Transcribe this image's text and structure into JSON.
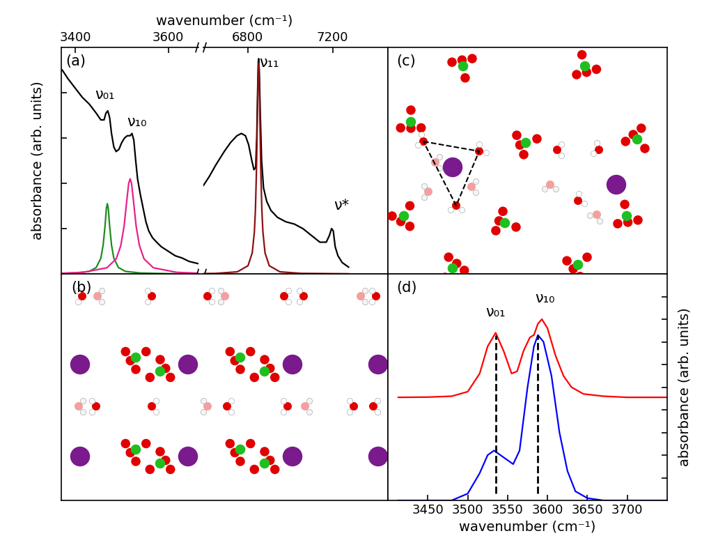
{
  "chart_data": [
    {
      "type": "line",
      "panel": "(a)",
      "xlabel": "wavenumber (cm⁻¹)",
      "ylabel": "absorbance (arb. units)",
      "xlim": [
        3370,
        3665
      ],
      "xticks": [
        3400,
        3600
      ],
      "ylim": [
        0,
        1
      ],
      "yticks": [
        0.2,
        0.4,
        0.6,
        0.8
      ],
      "tick_labels": "x",
      "series": [
        {
          "color": "#000000",
          "x": [
            3372,
            3385,
            3400,
            3415,
            3430,
            3445,
            3455,
            3462,
            3466,
            3470,
            3474,
            3478,
            3483,
            3488,
            3494,
            3500,
            3506,
            3512,
            3518,
            3522,
            3526,
            3530,
            3534,
            3540,
            3546,
            3552,
            3558,
            3566,
            3575,
            3585,
            3600,
            3615,
            3630,
            3645,
            3665
          ],
          "values": [
            0.9,
            0.86,
            0.82,
            0.78,
            0.75,
            0.71,
            0.68,
            0.68,
            0.71,
            0.72,
            0.69,
            0.62,
            0.56,
            0.54,
            0.55,
            0.58,
            0.6,
            0.61,
            0.61,
            0.62,
            0.59,
            0.5,
            0.42,
            0.35,
            0.29,
            0.23,
            0.19,
            0.16,
            0.14,
            0.12,
            0.1,
            0.08,
            0.07,
            0.055,
            0.045
          ]
        },
        {
          "color": "#1e8c1e",
          "x": [
            3372,
            3400,
            3430,
            3445,
            3455,
            3460,
            3464,
            3467,
            3469,
            3471,
            3474,
            3478,
            3483,
            3493,
            3508,
            3540,
            3600,
            3665
          ],
          "values": [
            0.002,
            0.004,
            0.011,
            0.028,
            0.069,
            0.127,
            0.21,
            0.29,
            0.31,
            0.29,
            0.21,
            0.127,
            0.069,
            0.028,
            0.011,
            0.004,
            0.001,
            0.0
          ]
        },
        {
          "color": "#e8208c",
          "x": [
            3372,
            3418,
            3468,
            3488,
            3498,
            3505,
            3512,
            3515,
            3518,
            3521,
            3524,
            3531,
            3538,
            3548,
            3568,
            3618,
            3665
          ],
          "values": [
            0.003,
            0.007,
            0.027,
            0.066,
            0.125,
            0.21,
            0.346,
            0.4,
            0.42,
            0.4,
            0.346,
            0.21,
            0.125,
            0.066,
            0.027,
            0.007,
            0.003
          ]
        }
      ],
      "annotations": [
        {
          "text": "ν₀₁",
          "x": 3464,
          "y": 0.76
        },
        {
          "text": "ν₁₀",
          "x": 3533,
          "y": 0.64
        }
      ]
    },
    {
      "type": "line",
      "xlim": [
        6592,
        7460
      ],
      "xticks": [
        6800,
        7200
      ],
      "ylim": [
        0,
        1
      ],
      "yticks": [],
      "tick_labels": "x",
      "series": [
        {
          "color": "#000000",
          "x": [
            6592,
            6620,
            6650,
            6690,
            6720,
            6750,
            6771,
            6790,
            6805,
            6820,
            6830,
            6838,
            6843,
            6847,
            6850,
            6852,
            6855,
            6860,
            6866,
            6875,
            6890,
            6910,
            6940,
            6980,
            7020,
            7060,
            7100,
            7140,
            7170,
            7185,
            7195,
            7203,
            7212,
            7225,
            7245,
            7275
          ],
          "values": [
            0.39,
            0.43,
            0.48,
            0.54,
            0.58,
            0.61,
            0.62,
            0.61,
            0.57,
            0.5,
            0.46,
            0.47,
            0.6,
            0.8,
            0.93,
            0.95,
            0.9,
            0.7,
            0.5,
            0.38,
            0.32,
            0.28,
            0.25,
            0.23,
            0.22,
            0.2,
            0.17,
            0.14,
            0.14,
            0.17,
            0.2,
            0.19,
            0.12,
            0.08,
            0.05,
            0.03
          ]
        },
        {
          "color": "#8b1010",
          "x": [
            6592,
            6652,
            6752,
            6802,
            6822,
            6832,
            6837,
            6842,
            6846,
            6849,
            6852,
            6855,
            6858,
            6862,
            6867,
            6872,
            6882,
            6902,
            6952,
            7052,
            7275
          ],
          "values": [
            0.0014,
            0.0023,
            0.0092,
            0.036,
            0.093,
            0.186,
            0.286,
            0.465,
            0.684,
            0.853,
            0.93,
            0.853,
            0.684,
            0.465,
            0.286,
            0.186,
            0.093,
            0.036,
            0.0092,
            0.0023,
            0.0005
          ]
        }
      ],
      "annotations": [
        {
          "text": "ν₁₁",
          "x": 6900,
          "y": 0.9
        },
        {
          "text": "ν*",
          "x": 7240,
          "y": 0.27
        }
      ]
    },
    {
      "type": "line",
      "panel": "(d)",
      "xlabel": "wavenumber (cm⁻¹)",
      "ylabel": "absorbance (arb. units)",
      "xlim": [
        3400,
        3750
      ],
      "xticks": [
        3450,
        3500,
        3550,
        3600,
        3650,
        3700
      ],
      "ylim": [
        0,
        1
      ],
      "yticks": [
        0.1,
        0.2,
        0.3,
        0.4,
        0.5,
        0.6,
        0.7,
        0.8,
        0.9
      ],
      "tick_labels": "x",
      "vlines": [
        3535,
        3588
      ],
      "series": [
        {
          "color": "#ff0000",
          "x": [
            3413,
            3450,
            3480,
            3500,
            3515,
            3525,
            3535,
            3545,
            3555,
            3562,
            3570,
            3578,
            3583,
            3588,
            3593,
            3600,
            3610,
            3620,
            3630,
            3645,
            3670,
            3700,
            3750
          ],
          "values": [
            0.455,
            0.456,
            0.46,
            0.48,
            0.56,
            0.68,
            0.74,
            0.66,
            0.56,
            0.57,
            0.66,
            0.72,
            0.73,
            0.78,
            0.8,
            0.76,
            0.64,
            0.55,
            0.5,
            0.47,
            0.46,
            0.455,
            0.455
          ]
        },
        {
          "color": "#0000ff",
          "x": [
            3413,
            3480,
            3500,
            3515,
            3525,
            3533,
            3545,
            3557,
            3565,
            3575,
            3583,
            3588,
            3595,
            3605,
            3615,
            3625,
            3635,
            3650,
            3670,
            3750
          ],
          "values": [
            0.0,
            0.0,
            0.03,
            0.12,
            0.2,
            0.22,
            0.19,
            0.16,
            0.22,
            0.5,
            0.68,
            0.73,
            0.7,
            0.55,
            0.3,
            0.13,
            0.04,
            0.01,
            0.0,
            0.0
          ]
        }
      ],
      "annotations": [
        {
          "text": "ν₀₁",
          "x": 3535,
          "y": 0.8
        },
        {
          "text": "ν₁₀",
          "x": 3597,
          "y": 0.86
        }
      ]
    }
  ],
  "diagrams": [
    {
      "panel": "(b)"
    },
    {
      "panel": "(c)"
    }
  ]
}
